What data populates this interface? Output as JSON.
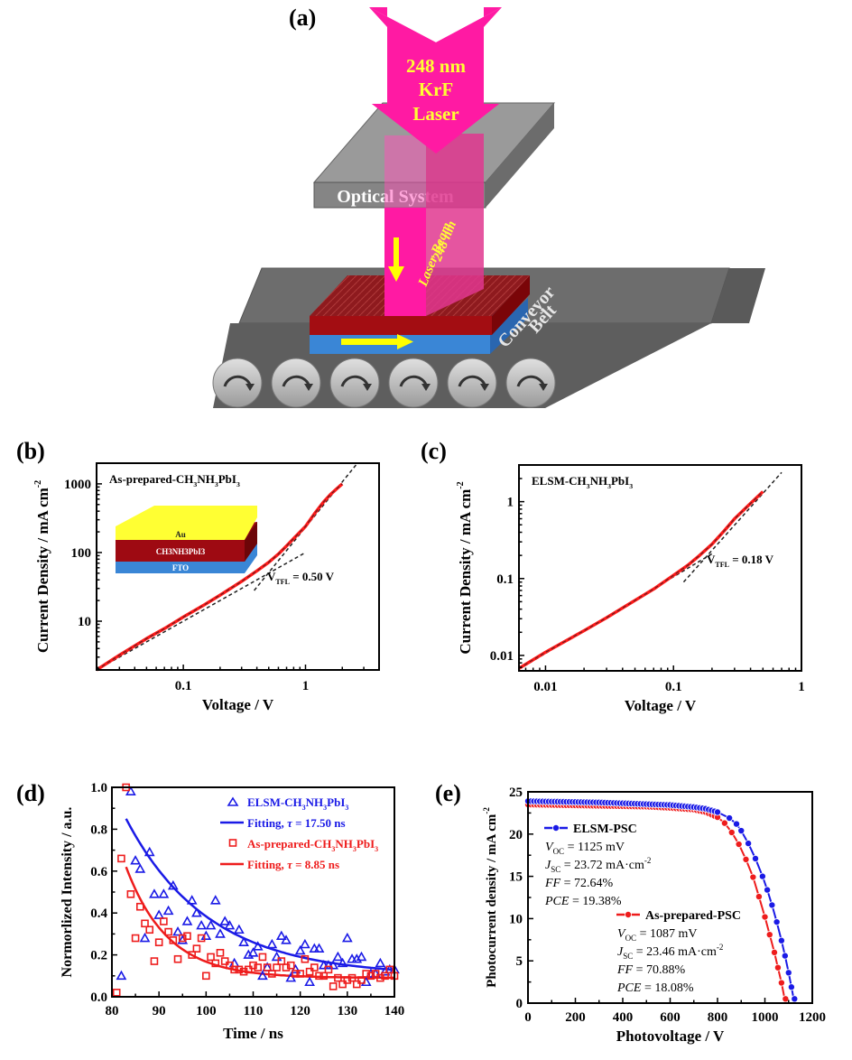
{
  "figure": {
    "panel_labels": [
      "(a)",
      "(b)",
      "(c)",
      "(d)",
      "(e)"
    ]
  },
  "schematic": {
    "label": "(a)",
    "laser_text": [
      "248 nm",
      "KrF",
      "Laser"
    ],
    "optical_system_label": "Optical System",
    "beam_label": [
      "248 nm",
      "Laser Beam"
    ],
    "conveyor_label": [
      "Conveyor",
      "Belt"
    ],
    "colors": {
      "laser": "#ff1aa3",
      "laser_text": "#ffff33",
      "perovskite": "#9e0a12",
      "fto": "#3a86d6",
      "belt": "#6d6d6d",
      "optical": "#9a9a9a",
      "arrow": "#ffff00"
    },
    "roller_count": 6
  },
  "chart_data": [
    {
      "id": "b",
      "type": "line",
      "title": "As-prepared-CH3NH3PbI3",
      "title_parts": [
        "As-prepared-CH",
        "3",
        "NH",
        "3",
        "PbI",
        "3"
      ],
      "xlabel": "Voltage / V",
      "ylabel": "Current Density / mA cm",
      "ylabel_sup": "-2",
      "xscale": "log",
      "yscale": "log",
      "xlim": [
        0.0195,
        4.0
      ],
      "ylim": [
        1.95,
        2000
      ],
      "xticks": [
        0.1,
        1
      ],
      "xtick_labels": [
        "0.1",
        "1"
      ],
      "yticks": [
        10,
        100,
        1000
      ],
      "ytick_labels": [
        "10",
        "100",
        "1000"
      ],
      "series": [
        {
          "name": "J-V",
          "color": "#ff1a1a",
          "x": [
            0.0195,
            0.03,
            0.05,
            0.07,
            0.1,
            0.15,
            0.2,
            0.3,
            0.4,
            0.5,
            0.6,
            0.7,
            0.8,
            1.0,
            1.2,
            1.4,
            1.6,
            1.8,
            2.0
          ],
          "y": [
            1.95,
            3.2,
            5.6,
            7.8,
            11.5,
            17.5,
            24,
            38,
            54,
            72,
            95,
            125,
            160,
            240,
            380,
            540,
            700,
            850,
            1000
          ]
        }
      ],
      "fits": [
        {
          "name": "ohmic fit",
          "style": "dashed",
          "x": [
            0.0195,
            1.0
          ],
          "y": [
            1.95,
            100
          ]
        },
        {
          "name": "TFL fit",
          "style": "dashed",
          "x": [
            0.38,
            2.6
          ],
          "y": [
            28,
            1900
          ]
        }
      ],
      "annotation": {
        "text": "V",
        "sub": "TFL",
        "value": " = 0.50 V"
      },
      "inset": {
        "layers": [
          "Au",
          "CH3NH3PbI3",
          "FTO"
        ],
        "colors": [
          "#ffff33",
          "#9e0a12",
          "#3a86d6"
        ]
      },
      "grid": false
    },
    {
      "id": "c",
      "type": "line",
      "title": "ELSM-CH3NH3PbI3",
      "title_parts": [
        "ELSM-CH",
        "3",
        "NH",
        "3",
        "PbI",
        "3"
      ],
      "xlabel": "Voltage / V",
      "ylabel": "Current Density / mA cm",
      "ylabel_sup": "-2",
      "xscale": "log",
      "yscale": "log",
      "xlim": [
        0.0062,
        1.0
      ],
      "ylim": [
        0.0063,
        3.0
      ],
      "xticks": [
        0.01,
        0.1,
        1
      ],
      "xtick_labels": [
        "0.01",
        "0.1",
        "1"
      ],
      "yticks": [
        0.01,
        0.1,
        1
      ],
      "ytick_labels": [
        "0.01",
        "0.1",
        "1"
      ],
      "series": [
        {
          "name": "J-V",
          "color": "#ff1a1a",
          "x": [
            0.0062,
            0.01,
            0.02,
            0.03,
            0.05,
            0.07,
            0.1,
            0.13,
            0.16,
            0.2,
            0.25,
            0.3,
            0.4,
            0.5
          ],
          "y": [
            0.0068,
            0.011,
            0.021,
            0.031,
            0.052,
            0.073,
            0.11,
            0.15,
            0.2,
            0.28,
            0.42,
            0.6,
            0.95,
            1.35
          ]
        }
      ],
      "fits": [
        {
          "name": "ohmic fit",
          "style": "dashed",
          "x": [
            0.0062,
            0.2
          ],
          "y": [
            0.0066,
            0.21
          ]
        },
        {
          "name": "TFL fit",
          "style": "dashed",
          "x": [
            0.12,
            0.7
          ],
          "y": [
            0.09,
            2.4
          ]
        }
      ],
      "annotation": {
        "text": "V",
        "sub": "TFL",
        "value": " = 0.18 V"
      },
      "grid": false
    },
    {
      "id": "d",
      "type": "scatter",
      "xlabel": "Time / ns",
      "ylabel": "Normorlized Intensity / a.u.",
      "xlim": [
        80,
        140
      ],
      "ylim": [
        0.0,
        1.0
      ],
      "xticks": [
        80,
        90,
        100,
        110,
        120,
        130,
        140
      ],
      "xtick_labels": [
        "80",
        "90",
        "100",
        "110",
        "120",
        "130",
        "140"
      ],
      "yticks": [
        0.0,
        0.2,
        0.4,
        0.6,
        0.8,
        1.0
      ],
      "ytick_labels": [
        "0.0",
        "0.2",
        "0.4",
        "0.6",
        "0.8",
        "1.0"
      ],
      "legend_position": "top-right",
      "series": [
        {
          "name": "ELSM-CH3NH3PbI3",
          "label_parts": [
            "ELSM-CH",
            "3",
            "NH",
            "3",
            "PbI",
            "3"
          ],
          "marker": "triangle",
          "color": "#1a1ae6",
          "x": [
            82,
            84,
            85,
            86,
            87,
            88,
            89,
            90,
            91,
            92,
            93,
            94,
            95,
            96,
            97,
            98,
            99,
            100,
            101,
            102,
            103,
            104,
            105,
            106,
            107,
            108,
            109,
            110,
            111,
            112,
            113,
            114,
            115,
            116,
            117,
            118,
            119,
            120,
            121,
            122,
            123,
            124,
            125,
            126,
            127,
            128,
            129,
            130,
            131,
            132,
            133,
            134,
            135,
            136,
            137,
            138,
            139,
            140
          ],
          "y": [
            0.1,
            0.98,
            0.65,
            0.61,
            0.28,
            0.69,
            0.49,
            0.39,
            0.49,
            0.41,
            0.53,
            0.31,
            0.27,
            0.36,
            0.46,
            0.4,
            0.34,
            0.29,
            0.34,
            0.46,
            0.3,
            0.36,
            0.34,
            0.16,
            0.32,
            0.26,
            0.2,
            0.21,
            0.24,
            0.1,
            0.14,
            0.25,
            0.19,
            0.29,
            0.27,
            0.09,
            0.13,
            0.22,
            0.25,
            0.07,
            0.23,
            0.23,
            0.15,
            0.15,
            0.15,
            0.19,
            0.16,
            0.28,
            0.18,
            0.18,
            0.19,
            0.07,
            0.11,
            0.11,
            0.16,
            0.12,
            0.13,
            0.13
          ]
        },
        {
          "name": "Fitting, τ = 17.50 ns",
          "label_parts": [
            "Fitting, ",
            "τ",
            " = 17.50 ns"
          ],
          "marker": "line",
          "color": "#1a1ae6",
          "tau": 17.5,
          "x_range": [
            83,
            140
          ],
          "A": 0.75,
          "y0": 0.1
        },
        {
          "name": "As-prepared-CH3NH3PbI3",
          "label_parts": [
            "As-prepared-CH",
            "3",
            "NH",
            "3",
            "PbI",
            "3"
          ],
          "marker": "square",
          "color": "#ee1c1c",
          "x": [
            81,
            82,
            83,
            84,
            85,
            86,
            87,
            88,
            89,
            90,
            91,
            92,
            93,
            94,
            95,
            96,
            97,
            98,
            99,
            100,
            101,
            102,
            103,
            104,
            105,
            106,
            107,
            108,
            109,
            110,
            111,
            112,
            113,
            114,
            115,
            116,
            117,
            118,
            119,
            120,
            121,
            122,
            123,
            124,
            125,
            126,
            127,
            128,
            129,
            130,
            131,
            132,
            133,
            134,
            135,
            136,
            137,
            138,
            139,
            140
          ],
          "y": [
            0.02,
            0.66,
            1.0,
            0.49,
            0.28,
            0.43,
            0.35,
            0.32,
            0.17,
            0.26,
            0.36,
            0.31,
            0.27,
            0.18,
            0.28,
            0.29,
            0.2,
            0.23,
            0.28,
            0.1,
            0.19,
            0.16,
            0.21,
            0.17,
            0.15,
            0.13,
            0.13,
            0.12,
            0.13,
            0.15,
            0.14,
            0.19,
            0.14,
            0.11,
            0.14,
            0.17,
            0.14,
            0.15,
            0.11,
            0.11,
            0.18,
            0.12,
            0.14,
            0.1,
            0.1,
            0.13,
            0.05,
            0.09,
            0.06,
            0.08,
            0.09,
            0.06,
            0.08,
            0.11,
            0.1,
            0.11,
            0.09,
            0.1,
            0.13,
            0.1
          ]
        },
        {
          "name": "Fitting, τ = 8.85 ns",
          "label_parts": [
            "Fitting, ",
            "τ",
            " = 8.85 ns"
          ],
          "marker": "line",
          "color": "#ee1c1c",
          "tau": 8.85,
          "x_range": [
            83,
            140
          ],
          "A": 0.53,
          "y0": 0.09
        }
      ],
      "grid": false
    },
    {
      "id": "e",
      "type": "line",
      "xlabel": "Photovoltage / V",
      "ylabel": "Photocurrent density / mA cm",
      "ylabel_sup": "-2",
      "xlim": [
        0,
        1200
      ],
      "ylim": [
        0,
        25
      ],
      "xticks": [
        0,
        200,
        400,
        600,
        800,
        1000,
        1200
      ],
      "xtick_labels": [
        "0",
        "200",
        "400",
        "600",
        "800",
        "1000",
        "1200"
      ],
      "yticks": [
        0,
        5,
        10,
        15,
        20,
        25
      ],
      "ytick_labels": [
        "0",
        "5",
        "10",
        "15",
        "20",
        "25"
      ],
      "series": [
        {
          "name": "ELSM-PSC",
          "color": "#1a1ae6",
          "marker": "circle",
          "voc": 1125,
          "jsc": 23.72,
          "x": [
            0,
            100,
            200,
            300,
            400,
            500,
            600,
            700,
            750,
            800,
            850,
            880,
            900,
            930,
            960,
            990,
            1010,
            1030,
            1050,
            1070,
            1085,
            1100,
            1112,
            1125
          ],
          "y": [
            23.9,
            23.85,
            23.8,
            23.75,
            23.65,
            23.55,
            23.45,
            23.2,
            23.0,
            22.6,
            21.9,
            21.2,
            20.4,
            18.9,
            17.1,
            15.0,
            13.4,
            11.6,
            9.6,
            7.4,
            5.6,
            3.6,
            1.9,
            0.0
          ],
          "stats": [
            {
              "sym": "V",
              "sub": "OC",
              "val": " = 1125 mV"
            },
            {
              "sym": "J",
              "sub": "SC",
              "val": " = 23.72 mA·cm",
              "sup": "-2"
            },
            {
              "sym": "FF",
              "sub": "",
              "val": " = 72.64%"
            },
            {
              "sym": "PCE",
              "sub": "",
              "val": " = 19.38%"
            }
          ]
        },
        {
          "name": "As-prepared-PSC",
          "color": "#ee1c1c",
          "marker": "circle",
          "voc": 1087,
          "jsc": 23.46,
          "x": [
            0,
            100,
            200,
            300,
            400,
            500,
            600,
            700,
            750,
            800,
            830,
            860,
            890,
            920,
            950,
            975,
            1000,
            1020,
            1040,
            1055,
            1070,
            1087
          ],
          "y": [
            23.5,
            23.45,
            23.4,
            23.35,
            23.3,
            23.25,
            23.1,
            22.9,
            22.6,
            22.0,
            21.3,
            20.2,
            18.8,
            17.0,
            14.9,
            12.6,
            10.2,
            8.1,
            6.0,
            4.2,
            2.4,
            0.0
          ],
          "stats": [
            {
              "sym": "V",
              "sub": "OC",
              "val": " = 1087 mV"
            },
            {
              "sym": "J",
              "sub": "SC",
              "val": " = 23.46 mA·cm",
              "sup": "-2"
            },
            {
              "sym": "FF",
              "sub": "",
              "val": " = 70.88%"
            },
            {
              "sym": "PCE",
              "sub": "",
              "val": " = 18.08%"
            }
          ]
        }
      ],
      "grid": false
    }
  ]
}
